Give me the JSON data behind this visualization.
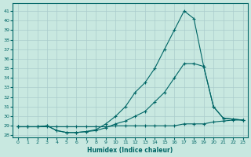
{
  "xlabel": "Humidex (Indice chaleur)",
  "bg_color": "#c8e8e0",
  "grid_color": "#aacccc",
  "line_color": "#006666",
  "xlim": [
    -0.5,
    23.5
  ],
  "ylim": [
    27.8,
    41.8
  ],
  "yticks": [
    28,
    29,
    30,
    31,
    32,
    33,
    34,
    35,
    36,
    37,
    38,
    39,
    40,
    41
  ],
  "xticks": [
    0,
    1,
    2,
    3,
    4,
    5,
    6,
    7,
    8,
    9,
    10,
    11,
    12,
    13,
    14,
    15,
    16,
    17,
    18,
    19,
    20,
    21,
    22,
    23
  ],
  "line_flat_x": [
    0,
    1,
    2,
    3,
    4,
    5,
    6,
    7,
    8,
    9,
    10,
    11,
    12,
    13,
    14,
    15,
    16,
    17,
    18,
    19,
    20,
    21,
    22,
    23
  ],
  "line_flat_y": [
    28.9,
    28.9,
    28.9,
    28.9,
    28.9,
    28.9,
    28.9,
    28.9,
    28.9,
    28.9,
    29.0,
    29.0,
    29.0,
    29.0,
    29.0,
    29.0,
    29.0,
    29.2,
    29.2,
    29.2,
    29.4,
    29.5,
    29.6,
    29.6
  ],
  "line_mid_x": [
    0,
    1,
    2,
    3,
    4,
    5,
    6,
    7,
    8,
    9,
    10,
    11,
    12,
    13,
    14,
    15,
    16,
    17,
    18,
    19,
    20,
    21,
    22,
    23
  ],
  "line_mid_y": [
    28.9,
    28.9,
    28.9,
    29.0,
    28.5,
    28.3,
    28.3,
    28.4,
    28.5,
    28.8,
    29.2,
    29.5,
    30.0,
    30.5,
    31.5,
    32.5,
    34.0,
    35.5,
    35.5,
    35.2,
    31.0,
    29.8,
    29.7,
    29.6
  ],
  "line_top_x": [
    0,
    1,
    2,
    3,
    4,
    5,
    6,
    7,
    8,
    9,
    10,
    11,
    12,
    13,
    14,
    15,
    16,
    17,
    18,
    19,
    20,
    21,
    22,
    23
  ],
  "line_top_y": [
    28.9,
    28.9,
    28.9,
    29.0,
    28.5,
    28.3,
    28.3,
    28.4,
    28.6,
    29.2,
    30.0,
    31.0,
    32.5,
    33.5,
    35.0,
    37.0,
    39.0,
    41.0,
    40.2,
    35.2,
    31.0,
    29.8,
    29.7,
    29.6
  ]
}
